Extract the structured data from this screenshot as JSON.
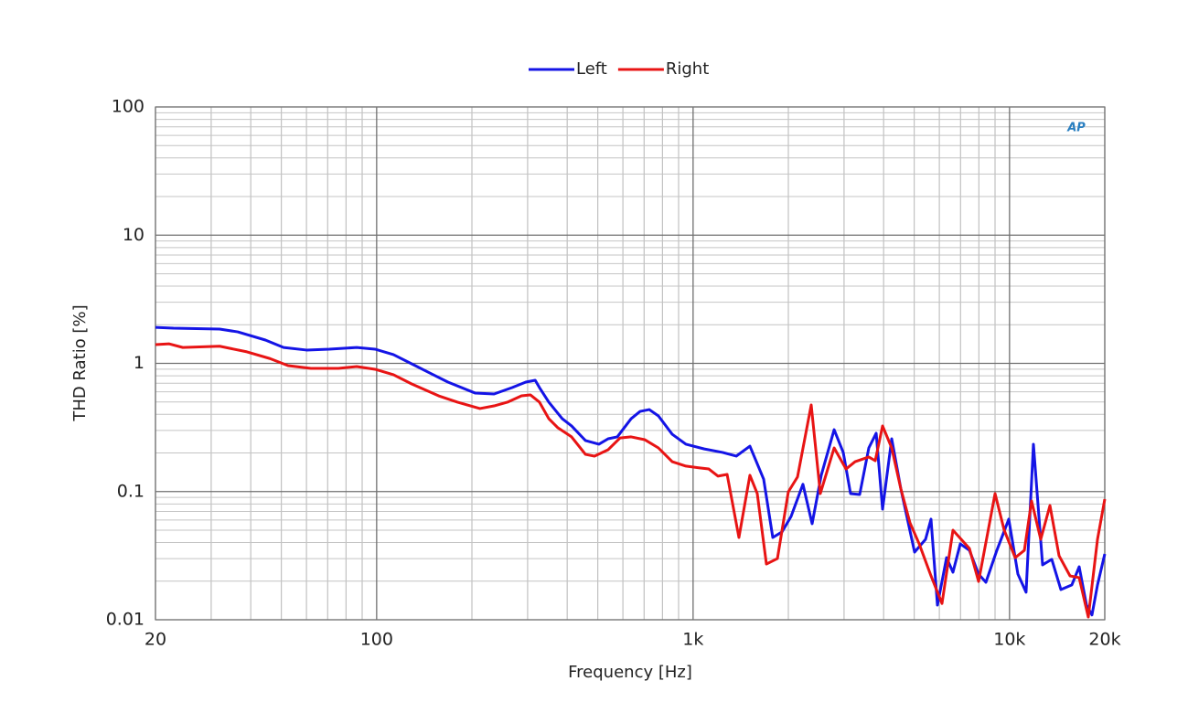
{
  "chart_data": {
    "type": "line",
    "xlabel": "Frequency [Hz]",
    "ylabel": "THD Ratio [%]",
    "logo": "AP",
    "xscale": "log",
    "yscale": "log",
    "grid": true,
    "legend": "top",
    "xlim": [
      20,
      20000
    ],
    "ylim": [
      0.01,
      100
    ],
    "xticks": [
      20,
      100,
      {
        "value": 1000,
        "label": "1k"
      },
      {
        "value": 10000,
        "label": "10k"
      },
      {
        "value": 20000,
        "label": "20k"
      }
    ],
    "yticks": [
      0.01,
      0.1,
      1,
      10,
      100
    ],
    "series": [
      {
        "name": "Left",
        "color": "#1414e6",
        "x": [
          20,
          22.8,
          31.9,
          36.4,
          44.5,
          50.8,
          60,
          70.8,
          86.5,
          98.8,
          113,
          129,
          147,
          168,
          205,
          235,
          268,
          296,
          317,
          327,
          350,
          386,
          413,
          457,
          504,
          539,
          576,
          637,
          680,
          727,
          777,
          859,
          949,
          1085,
          1239,
          1369,
          1512,
          1671,
          1786,
          1909,
          2040,
          2224,
          2378,
          2541,
          2791,
          2982,
          3145,
          3361,
          3592,
          3790,
          3970,
          4243,
          4535,
          5012,
          5428,
          5648,
          5918,
          6325,
          6626,
          6988,
          7469,
          7985,
          8421,
          9120,
          9946,
          10630,
          11280,
          11900,
          12720,
          13600,
          14530,
          15740,
          16600,
          17510,
          18220,
          18970,
          20000
        ],
        "values": [
          1.91,
          1.88,
          1.85,
          1.76,
          1.52,
          1.33,
          1.27,
          1.29,
          1.33,
          1.29,
          1.17,
          0.992,
          0.842,
          0.714,
          0.586,
          0.577,
          0.647,
          0.714,
          0.738,
          0.647,
          0.498,
          0.37,
          0.325,
          0.25,
          0.234,
          0.258,
          0.267,
          0.37,
          0.422,
          0.436,
          0.389,
          0.28,
          0.234,
          0.215,
          0.202,
          0.189,
          0.226,
          0.125,
          0.0438,
          0.0484,
          0.0639,
          0.114,
          0.0561,
          0.134,
          0.304,
          0.202,
          0.0964,
          0.0948,
          0.219,
          0.285,
          0.0729,
          0.258,
          0.105,
          0.0337,
          0.0424,
          0.0609,
          0.013,
          0.0305,
          0.0235,
          0.0391,
          0.0348,
          0.0227,
          0.0196,
          0.0348,
          0.0609,
          0.0227,
          0.0164,
          0.234,
          0.0268,
          0.0296,
          0.0172,
          0.0187,
          0.0259,
          0.013,
          0.0109,
          0.0187,
          0.0326
        ]
      },
      {
        "name": "Right",
        "color": "#e81414",
        "x": [
          20,
          22.1,
          24.4,
          31.9,
          38.9,
          46.0,
          52.5,
          62.0,
          75.7,
          86.5,
          98.8,
          113,
          129,
          157,
          180,
          212,
          235,
          259,
          287,
          306,
          327,
          350,
          374,
          413,
          457,
          488,
          539,
          588,
          637,
          703,
          777,
          859,
          949,
          1049,
          1121,
          1198,
          1281,
          1396,
          1512,
          1595,
          1705,
          1847,
          2000,
          2138,
          2362,
          2524,
          2791,
          3043,
          3251,
          3592,
          3764,
          3970,
          4243,
          4535,
          4847,
          5182,
          5648,
          6118,
          6626,
          7469,
          7985,
          9002,
          9620,
          10420,
          11140,
          11740,
          12550,
          13420,
          14340,
          15530,
          16600,
          17740,
          18970,
          20000
        ],
        "values": [
          1.4,
          1.42,
          1.33,
          1.36,
          1.23,
          1.09,
          0.96,
          0.914,
          0.914,
          0.944,
          0.899,
          0.815,
          0.691,
          0.558,
          0.498,
          0.444,
          0.466,
          0.498,
          0.558,
          0.568,
          0.498,
          0.37,
          0.314,
          0.267,
          0.195,
          0.189,
          0.212,
          0.262,
          0.267,
          0.254,
          0.219,
          0.171,
          0.158,
          0.153,
          0.15,
          0.132,
          0.136,
          0.0438,
          0.134,
          0.0964,
          0.0272,
          0.03,
          0.0996,
          0.13,
          0.474,
          0.0964,
          0.219,
          0.15,
          0.171,
          0.186,
          0.174,
          0.325,
          0.219,
          0.105,
          0.057,
          0.0391,
          0.022,
          0.0134,
          0.05,
          0.036,
          0.0199,
          0.0964,
          0.05,
          0.0305,
          0.0348,
          0.0845,
          0.0424,
          0.0778,
          0.0316,
          0.022,
          0.0213,
          0.0105,
          0.0424,
          0.0873
        ]
      }
    ]
  }
}
